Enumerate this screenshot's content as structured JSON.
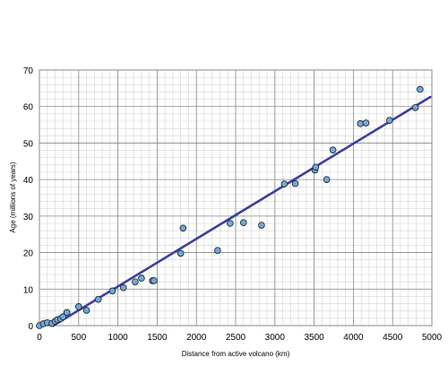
{
  "chart_data": {
    "type": "scatter",
    "xlabel": "Distance from active volcano (km)",
    "ylabel": "Age (millions of years)",
    "xlim": [
      0,
      5000
    ],
    "ylim": [
      0,
      70
    ],
    "xticks": [
      0,
      500,
      1000,
      1500,
      2000,
      2500,
      3000,
      3500,
      4000,
      4500,
      5000
    ],
    "yticks": [
      0,
      10,
      20,
      30,
      40,
      50,
      60,
      70
    ],
    "grid": true,
    "minor_grid": {
      "x_step": 100,
      "y_step": 2
    },
    "legend": "none",
    "marker_color": "#6fa8dc",
    "line_color": "#3b3f9e",
    "points": [
      [
        0,
        0
      ],
      [
        50,
        0.5
      ],
      [
        100,
        0.8
      ],
      [
        160,
        0.6
      ],
      [
        200,
        1.2
      ],
      [
        230,
        1.6
      ],
      [
        270,
        1.9
      ],
      [
        300,
        2.4
      ],
      [
        350,
        3.6
      ],
      [
        500,
        5.2
      ],
      [
        600,
        4.2
      ],
      [
        750,
        7.2
      ],
      [
        930,
        9.5
      ],
      [
        1070,
        10.4
      ],
      [
        1220,
        12.0
      ],
      [
        1300,
        13.0
      ],
      [
        1440,
        12.3
      ],
      [
        1460,
        12.3
      ],
      [
        1800,
        19.8
      ],
      [
        1830,
        26.7
      ],
      [
        2270,
        20.6
      ],
      [
        2430,
        28.0
      ],
      [
        2600,
        28.2
      ],
      [
        2830,
        27.5
      ],
      [
        3120,
        38.8
      ],
      [
        3260,
        38.9
      ],
      [
        3510,
        42.6
      ],
      [
        3520,
        43.4
      ],
      [
        3660,
        40.0
      ],
      [
        3740,
        48.1
      ],
      [
        4090,
        55.3
      ],
      [
        4160,
        55.5
      ],
      [
        4460,
        56.2
      ],
      [
        4790,
        59.7
      ],
      [
        4850,
        64.7
      ]
    ],
    "trendline": {
      "x": [
        100,
        4980
      ],
      "y": [
        -1,
        62.6
      ]
    }
  }
}
